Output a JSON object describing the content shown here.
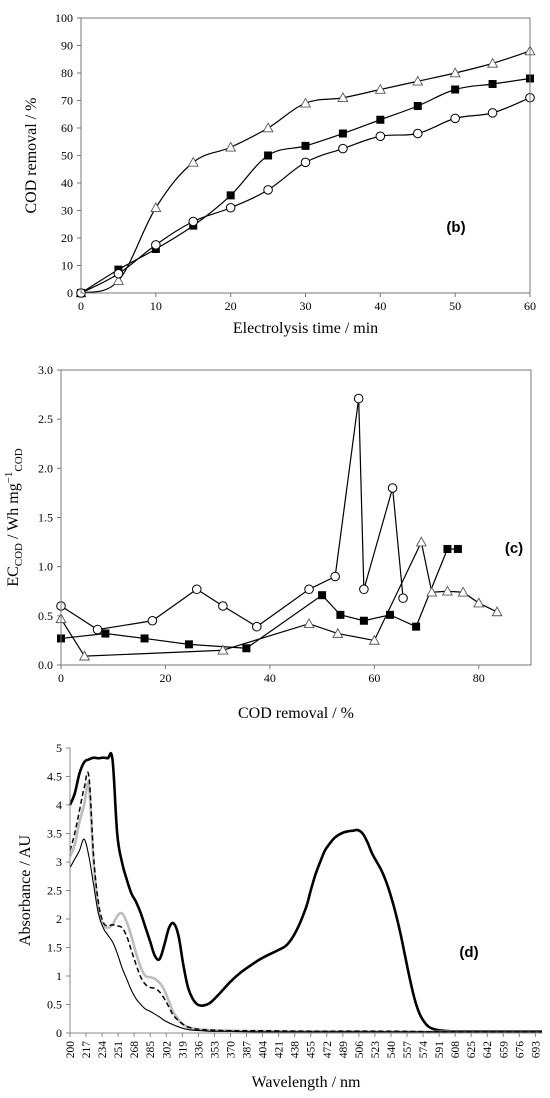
{
  "chart_data": [
    {
      "type": "line",
      "title": "",
      "xlabel": "Electrolysis time / min",
      "ylabel": "COD removal / %",
      "panel_label": "(b)",
      "xlim": [
        0,
        60
      ],
      "ylim": [
        0,
        100
      ],
      "x_ticks": [
        0,
        10,
        20,
        30,
        40,
        50,
        60
      ],
      "y_ticks": [
        0,
        10,
        20,
        30,
        40,
        50,
        60,
        70,
        80,
        90,
        100
      ],
      "grid": false,
      "legend": "none",
      "series": [
        {
          "marker": "triangle-open",
          "smooth": true,
          "x": [
            0,
            5,
            10,
            15,
            20,
            25,
            30,
            35,
            40,
            45,
            50,
            55,
            60
          ],
          "y": [
            0,
            4.5,
            31,
            47.5,
            53,
            60,
            69,
            71,
            74,
            77,
            80,
            83.5,
            88
          ]
        },
        {
          "marker": "square-filled",
          "smooth": true,
          "x": [
            0,
            5,
            10,
            15,
            20,
            25,
            30,
            35,
            40,
            45,
            50,
            55,
            60
          ],
          "y": [
            0,
            8.5,
            16,
            24.5,
            35.5,
            50,
            53.5,
            58,
            63,
            68,
            74,
            76,
            78
          ]
        },
        {
          "marker": "circle-open",
          "smooth": true,
          "x": [
            0,
            5,
            10,
            15,
            20,
            25,
            30,
            35,
            40,
            45,
            50,
            55,
            60
          ],
          "y": [
            0,
            7,
            17.5,
            26,
            31,
            37.5,
            47.5,
            52.5,
            57,
            58,
            63.5,
            65.5,
            71
          ]
        }
      ]
    },
    {
      "type": "line",
      "title": "",
      "xlabel": "COD removal / %",
      "ylabel_main": "EC",
      "ylabel_sub": "COD",
      "ylabel_mid": " / Wh mg",
      "ylabel_sup": "−1",
      "ylabel_sub2": "COD",
      "panel_label": "(c)",
      "xlim": [
        0,
        90
      ],
      "ylim": [
        0,
        3.0
      ],
      "x_ticks": [
        0,
        20,
        40,
        60,
        80
      ],
      "y_ticks": [
        0.0,
        0.5,
        1.0,
        1.5,
        2.0,
        2.5,
        3.0
      ],
      "y_tick_labels": [
        "0.0",
        "0.5",
        "1.0",
        "1.5",
        "2.0",
        "2.5",
        "3.0"
      ],
      "grid": false,
      "legend": "none",
      "series": [
        {
          "marker": "circle-open",
          "x": [
            0,
            7,
            17.5,
            26,
            31,
            37.5,
            47.5,
            52.5,
            57,
            58,
            63.5,
            65.5
          ],
          "y": [
            0.6,
            0.36,
            0.45,
            0.77,
            0.6,
            0.39,
            0.77,
            0.9,
            2.71,
            0.77,
            1.8,
            0.68
          ]
        },
        {
          "marker": "square-filled",
          "x": [
            0,
            8.5,
            16,
            24.5,
            35.5,
            50,
            53.5,
            58,
            63,
            68,
            74,
            76
          ],
          "y": [
            0.27,
            0.32,
            0.27,
            0.21,
            0.17,
            0.71,
            0.51,
            0.45,
            0.51,
            0.39,
            1.18,
            1.18
          ]
        },
        {
          "marker": "triangle-open",
          "x": [
            0,
            4.5,
            31,
            47.5,
            53,
            60,
            69,
            71,
            74,
            77,
            80,
            83.5
          ],
          "y": [
            0.47,
            0.09,
            0.15,
            0.42,
            0.32,
            0.25,
            1.25,
            0.74,
            0.75,
            0.74,
            0.63,
            0.54
          ]
        }
      ]
    },
    {
      "type": "line",
      "title": "",
      "xlabel": "Wavelength / nm",
      "ylabel": "Absorbance / AU",
      "panel_label": "(d)",
      "xlim": [
        200,
        700
      ],
      "ylim": [
        0,
        5
      ],
      "x_ticks": [
        200,
        217,
        234,
        251,
        268,
        285,
        302,
        319,
        336,
        353,
        370,
        387,
        404,
        421,
        438,
        455,
        472,
        489,
        506,
        523,
        540,
        557,
        574,
        591,
        608,
        625,
        642,
        659,
        676,
        693
      ],
      "y_ticks": [
        0,
        0.5,
        1,
        1.5,
        2,
        2.5,
        3,
        3.5,
        4,
        4.5,
        5
      ],
      "y_tick_labels": [
        "0",
        "0.5",
        "1",
        "1.5",
        "2",
        "2.5",
        "3",
        "3.5",
        "4",
        "4.5",
        "5"
      ],
      "grid": false,
      "legend": "none",
      "series": [
        {
          "style": "thick-black",
          "x": [
            200,
            205,
            210,
            215,
            220,
            225,
            230,
            235,
            240,
            245,
            250,
            255,
            260,
            265,
            270,
            275,
            280,
            285,
            290,
            295,
            300,
            305,
            310,
            315,
            320,
            325,
            330,
            335,
            340,
            345,
            350,
            360,
            370,
            380,
            390,
            400,
            410,
            420,
            430,
            440,
            450,
            455,
            460,
            465,
            470,
            475,
            480,
            485,
            490,
            495,
            500,
            505,
            510,
            515,
            520,
            525,
            530,
            535,
            540,
            545,
            550,
            555,
            560,
            565,
            570,
            575,
            580,
            585,
            590,
            595,
            600,
            605,
            610,
            620,
            640,
            660,
            680,
            700
          ],
          "y": [
            4.0,
            4.2,
            4.55,
            4.75,
            4.8,
            4.83,
            4.82,
            4.83,
            4.82,
            4.8,
            3.5,
            3.0,
            2.7,
            2.45,
            2.3,
            2.1,
            1.85,
            1.6,
            1.35,
            1.3,
            1.55,
            1.85,
            1.92,
            1.7,
            1.2,
            0.8,
            0.6,
            0.5,
            0.48,
            0.5,
            0.55,
            0.72,
            0.9,
            1.05,
            1.17,
            1.28,
            1.37,
            1.45,
            1.55,
            1.8,
            2.2,
            2.5,
            2.78,
            3.0,
            3.2,
            3.32,
            3.42,
            3.48,
            3.52,
            3.54,
            3.55,
            3.56,
            3.5,
            3.35,
            3.15,
            3.0,
            2.85,
            2.65,
            2.4,
            2.1,
            1.75,
            1.35,
            0.95,
            0.6,
            0.35,
            0.2,
            0.11,
            0.07,
            0.05,
            0.04,
            0.035,
            0.03,
            0.03,
            0.03,
            0.03,
            0.03,
            0.03,
            0.03
          ]
        },
        {
          "style": "grey-thick",
          "x": [
            200,
            205,
            210,
            215,
            220,
            225,
            230,
            235,
            240,
            245,
            250,
            255,
            260,
            265,
            270,
            275,
            280,
            285,
            290,
            295,
            300,
            305,
            310,
            320,
            330,
            340,
            350,
            370,
            400,
            450,
            500,
            550,
            600,
            700
          ],
          "y": [
            3.1,
            3.3,
            3.7,
            4.0,
            4.35,
            3.0,
            2.2,
            1.9,
            1.85,
            1.9,
            2.05,
            2.1,
            1.95,
            1.7,
            1.4,
            1.15,
            1.0,
            0.98,
            0.95,
            0.88,
            0.75,
            0.55,
            0.35,
            0.15,
            0.08,
            0.06,
            0.05,
            0.04,
            0.035,
            0.03,
            0.03,
            0.02,
            0.02,
            0.02
          ]
        },
        {
          "style": "dashed-black",
          "x": [
            200,
            205,
            210,
            215,
            220,
            225,
            230,
            235,
            240,
            245,
            250,
            255,
            260,
            265,
            270,
            275,
            280,
            285,
            290,
            295,
            300,
            305,
            310,
            320,
            330,
            340,
            350,
            370,
            400,
            450,
            500,
            550,
            600,
            700
          ],
          "y": [
            3.2,
            3.5,
            3.9,
            4.3,
            4.5,
            3.1,
            2.3,
            1.95,
            1.88,
            1.9,
            1.88,
            1.85,
            1.7,
            1.45,
            1.2,
            0.98,
            0.85,
            0.8,
            0.78,
            0.72,
            0.6,
            0.45,
            0.3,
            0.15,
            0.08,
            0.06,
            0.05,
            0.04,
            0.04,
            0.03,
            0.03,
            0.03,
            0.02,
            0.02
          ]
        },
        {
          "style": "thin-black",
          "x": [
            200,
            205,
            210,
            215,
            220,
            225,
            230,
            235,
            240,
            245,
            250,
            255,
            260,
            265,
            270,
            275,
            280,
            285,
            290,
            295,
            300,
            310,
            320,
            330,
            340,
            350,
            370,
            400,
            450,
            500,
            550,
            600,
            700
          ],
          "y": [
            2.9,
            3.05,
            3.2,
            3.4,
            3.1,
            2.6,
            2.1,
            1.85,
            1.72,
            1.6,
            1.4,
            1.15,
            0.95,
            0.75,
            0.6,
            0.5,
            0.42,
            0.38,
            0.33,
            0.28,
            0.22,
            0.14,
            0.08,
            0.05,
            0.04,
            0.03,
            0.03,
            0.02,
            0.02,
            0.02,
            0.02,
            0.02,
            0.02
          ]
        }
      ]
    }
  ]
}
